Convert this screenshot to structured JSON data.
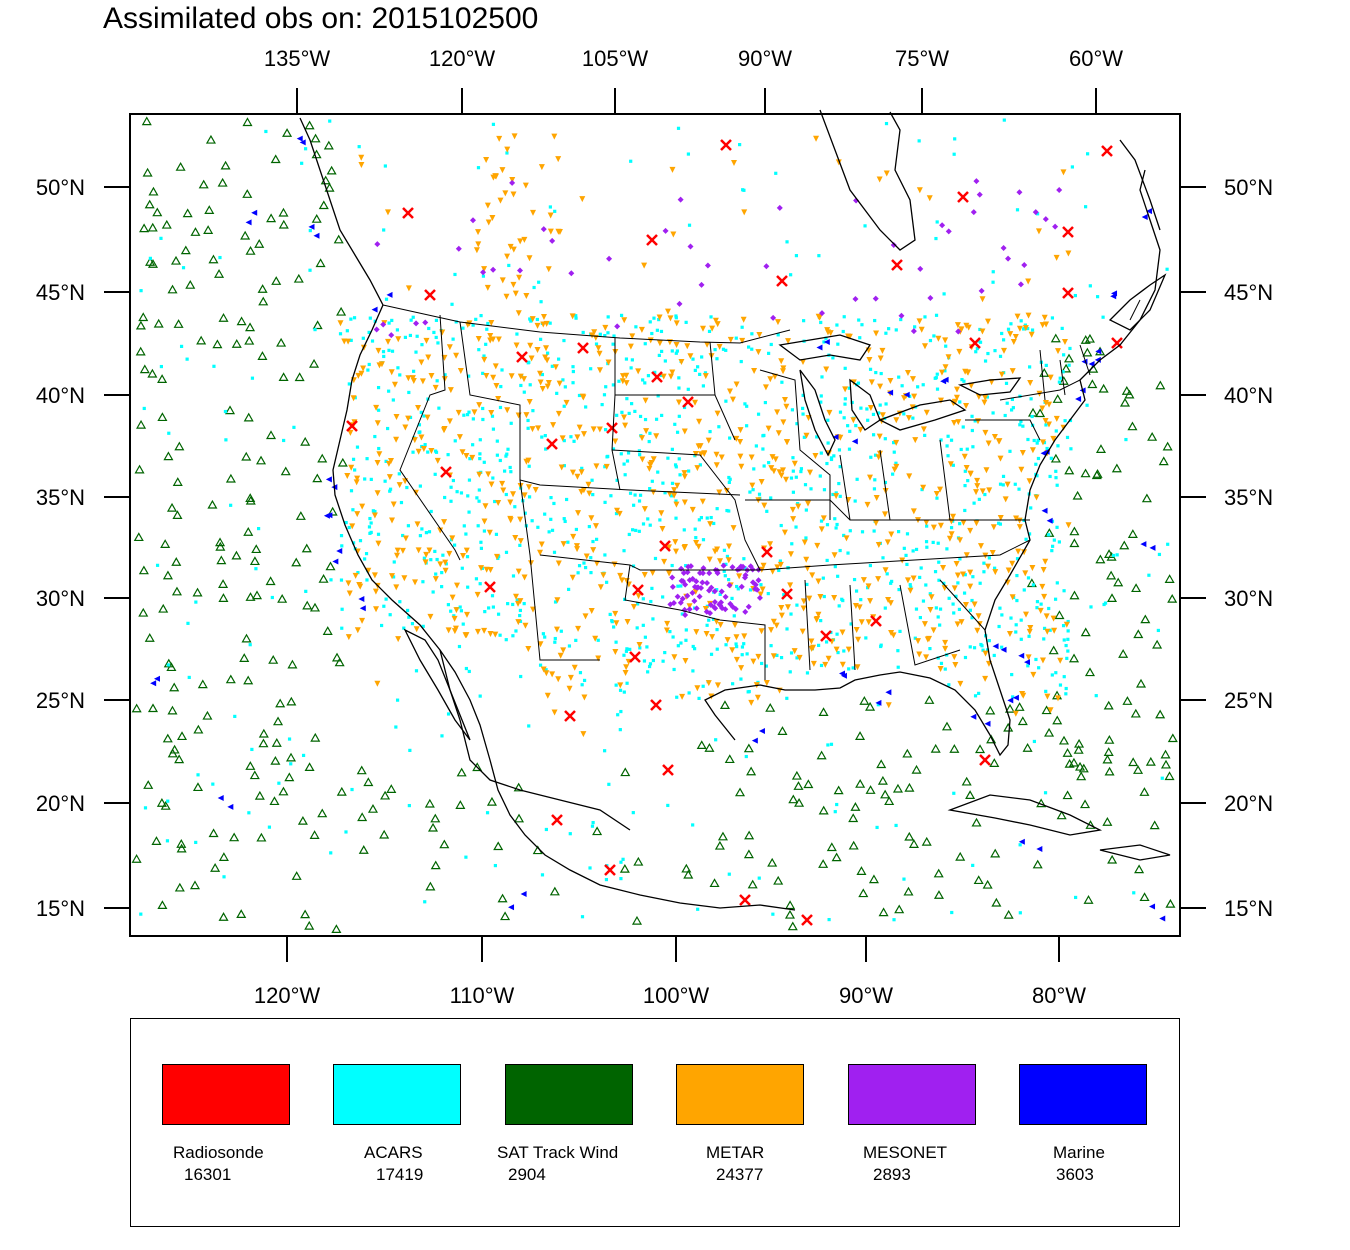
{
  "title": "Assimilated obs on: 2015102500",
  "map": {
    "top_lon_labels": [
      "135°W",
      "120°W",
      "105°W",
      "90°W",
      "75°W",
      "60°W"
    ],
    "bottom_lon_labels": [
      "120°W",
      "110°W",
      "100°W",
      "90°W",
      "80°W"
    ],
    "lat_labels": [
      "50°N",
      "45°N",
      "40°N",
      "35°N",
      "30°N",
      "25°N",
      "20°N",
      "15°N"
    ]
  },
  "legend": [
    {
      "name": "Radiosonde",
      "count": "16301",
      "color": "#ff0000",
      "marker": "x-cross"
    },
    {
      "name": "ACARS",
      "count": "17419",
      "color": "#00ffff",
      "marker": "square"
    },
    {
      "name": "SAT Track Wind",
      "count": "2904",
      "color": "#006400",
      "marker": "triangle-up"
    },
    {
      "name": "METAR",
      "count": "24377",
      "color": "#ffa500",
      "marker": "triangle-down"
    },
    {
      "name": "MESONET",
      "count": "2893",
      "color": "#a020f0",
      "marker": "diamond"
    },
    {
      "name": "Marine",
      "count": "3603",
      "color": "#0000ff",
      "marker": "triangle-left"
    }
  ]
}
